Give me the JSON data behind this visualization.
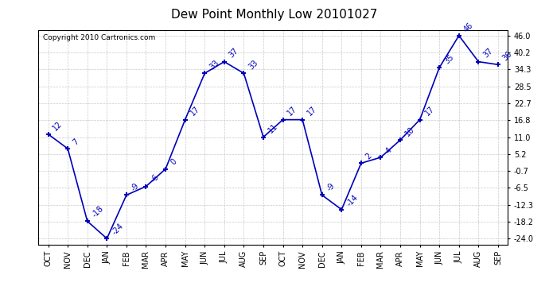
{
  "title": "Dew Point Monthly Low 20101027",
  "copyright": "Copyright 2010 Cartronics.com",
  "months": [
    "OCT",
    "NOV",
    "DEC",
    "JAN",
    "FEB",
    "MAR",
    "APR",
    "MAY",
    "JUN",
    "JUL",
    "AUG",
    "SEP",
    "OCT",
    "NOV",
    "DEC",
    "JAN",
    "FEB",
    "MAR",
    "APR",
    "MAY",
    "JUN",
    "JUL",
    "AUG",
    "SEP"
  ],
  "values": [
    12,
    7,
    -18,
    -24,
    -9,
    -6,
    0,
    17,
    33,
    37,
    33,
    11,
    17,
    17,
    -9,
    -14,
    2,
    4,
    10,
    17,
    35,
    46,
    37,
    36
  ],
  "line_color": "#0000bb",
  "bg_color": "#ffffff",
  "grid_color": "#bbbbbb",
  "yticks": [
    46.0,
    40.2,
    34.3,
    28.5,
    22.7,
    16.8,
    11.0,
    5.2,
    -0.7,
    -6.5,
    -12.3,
    -18.2,
    -24.0
  ],
  "ylim_min": -26,
  "ylim_max": 48,
  "title_fontsize": 11,
  "annotation_fontsize": 7,
  "label_fontsize": 7,
  "copyright_fontsize": 6.5
}
